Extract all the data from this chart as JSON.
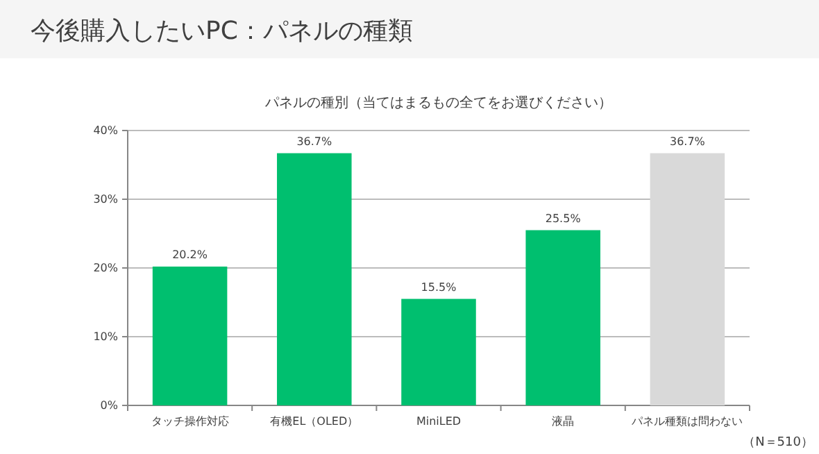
{
  "chart_data": {
    "type": "bar",
    "title": "今後購入したいPC：パネルの種類",
    "subtitle": "パネルの種別（当てはまるもの全てをお選びください）",
    "categories": [
      "タッチ操作対応",
      "有機EL（OLED）",
      "MiniLED",
      "液晶",
      "パネル種類は問わない"
    ],
    "values": [
      20.2,
      36.7,
      15.5,
      25.5,
      36.7
    ],
    "colors": [
      "#00bf6f",
      "#00bf6f",
      "#00bf6f",
      "#00bf6f",
      "#d9d9d9"
    ],
    "value_labels": [
      "20.2%",
      "36.7%",
      "15.5%",
      "25.5%",
      "36.7%"
    ],
    "ylim": [
      0,
      40
    ],
    "yticks": [
      {
        "value": 0,
        "label": "0%"
      },
      {
        "value": 10,
        "label": "10%"
      },
      {
        "value": 20,
        "label": "20%"
      },
      {
        "value": 30,
        "label": "30%"
      },
      {
        "value": 40,
        "label": "40%"
      }
    ],
    "grid": "y",
    "annotations": [
      "（N＝510）"
    ]
  }
}
